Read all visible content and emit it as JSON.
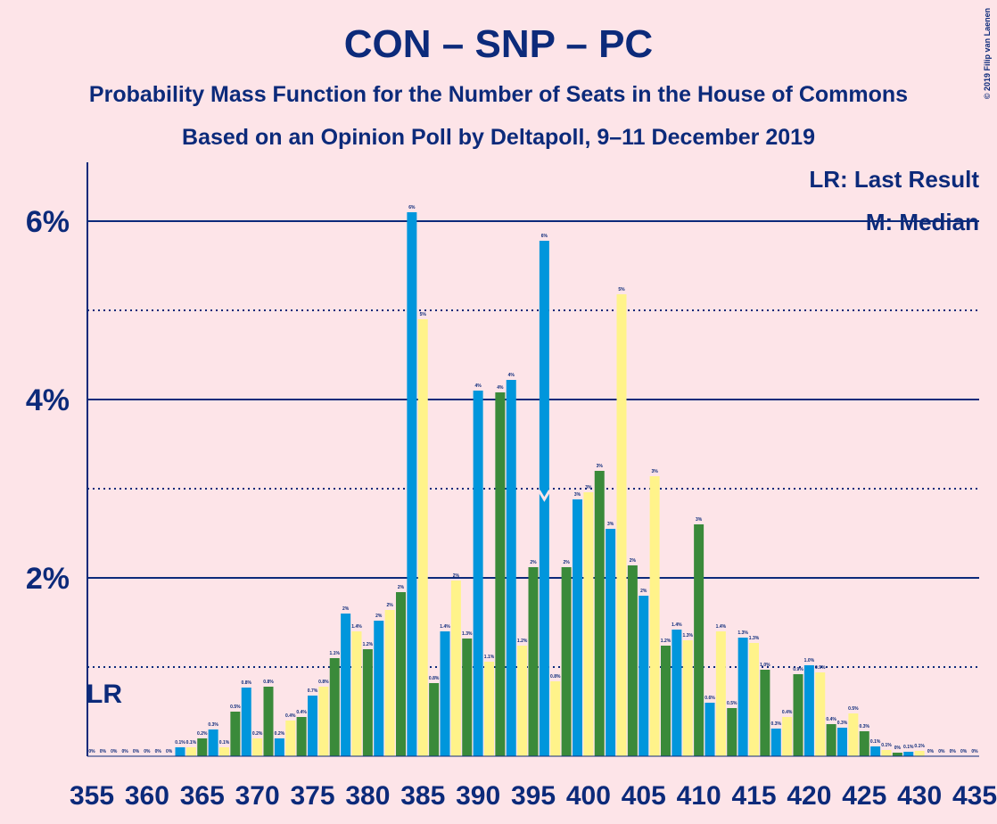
{
  "chart_data": {
    "type": "bar",
    "title": "CON – SNP – PC",
    "subtitle": "Probability Mass Function for the Number of Seats in the House of Commons",
    "subtitle2": "Based on an Opinion Poll by Deltapoll, 9–11 December 2019",
    "copyright": "© 2019 Filip van Laenen",
    "legend": [
      "LR: Last Result",
      "M: Median"
    ],
    "lr_label": "LR",
    "last_result": 355,
    "median": 396,
    "bar_colors": [
      "#fff38a",
      "#3a8a3a",
      "#0096dc"
    ],
    "x": [
      355,
      356,
      357,
      358,
      359,
      360,
      361,
      362,
      363,
      364,
      365,
      366,
      367,
      368,
      369,
      370,
      371,
      372,
      373,
      374,
      375,
      376,
      377,
      378,
      379,
      380,
      381,
      382,
      383,
      384,
      385,
      386,
      387,
      388,
      389,
      390,
      391,
      392,
      393,
      394,
      395,
      396,
      397,
      398,
      399,
      400,
      401,
      402,
      403,
      404,
      405,
      406,
      407,
      408,
      409,
      410,
      411,
      412,
      413,
      414,
      415,
      416,
      417,
      418,
      419,
      420,
      421,
      422,
      423,
      424,
      425,
      426,
      427,
      428,
      429,
      430,
      431,
      432,
      433,
      434,
      435
    ],
    "values": [
      0,
      0,
      0,
      0,
      0,
      0,
      0,
      0,
      0.1,
      0.1,
      0.2,
      0.3,
      0.1,
      0.5,
      0.77,
      0.2,
      0.78,
      0.2,
      0.4,
      0.44,
      0.68,
      0.78,
      1.1,
      1.6,
      1.4,
      1.2,
      1.52,
      1.64,
      1.84,
      6.1,
      4.9,
      0.82,
      1.4,
      1.97,
      1.32,
      4.1,
      1.06,
      4.08,
      4.22,
      1.24,
      2.12,
      5.78,
      0.84,
      2.12,
      2.88,
      2.96,
      3.2,
      2.55,
      5.18,
      2.14,
      1.8,
      3.14,
      1.24,
      1.42,
      1.3,
      2.6,
      0.6,
      1.4,
      0.54,
      1.33,
      1.27,
      0.97,
      0.31,
      0.44,
      0.92,
      1.02,
      0.94,
      0.36,
      0.32,
      0.48,
      0.28,
      0.11,
      0.07,
      0.04,
      0.05,
      0.06,
      0,
      0,
      0,
      0,
      0
    ],
    "value_labels": [
      "0%",
      "0%",
      "0%",
      "0%",
      "0%",
      "0%",
      "0%",
      "0%",
      "0.1%",
      "0.1%",
      "0.2%",
      "0.3%",
      "0.1%",
      "0.5%",
      "0.8%",
      "0.2%",
      "0.8%",
      "0.2%",
      "0.4%",
      "0.4%",
      "0.7%",
      "0.8%",
      "1.1%",
      "2%",
      "1.4%",
      "1.2%",
      "2%",
      "2%",
      "2%",
      "6%",
      "5%",
      "0.8%",
      "1.4%",
      "2%",
      "1.3%",
      "4%",
      "1.1%",
      "4%",
      "4%",
      "1.2%",
      "2%",
      "6%",
      "0.8%",
      "2%",
      "3%",
      "3%",
      "3%",
      "3%",
      "5%",
      "2%",
      "2%",
      "3%",
      "1.2%",
      "1.4%",
      "1.3%",
      "3%",
      "0.6%",
      "1.4%",
      "0.5%",
      "1.3%",
      "1.3%",
      "1.0%",
      "0.3%",
      "0.4%",
      "0.9%",
      "1.0%",
      "0.9%",
      "0.4%",
      "0.3%",
      "0.5%",
      "0.3%",
      "0.1%",
      "0.1%",
      "0%",
      "0.1%",
      "0.1%",
      "0%",
      "0%",
      "0%",
      "0%",
      "0%"
    ],
    "xticks": [
      355,
      360,
      365,
      370,
      375,
      380,
      385,
      390,
      395,
      400,
      405,
      410,
      415,
      420,
      425,
      430,
      435
    ],
    "ylim": [
      0,
      6.66
    ],
    "yticks": [
      {
        "value": 2,
        "label": "2%"
      },
      {
        "value": 4,
        "label": "4%"
      },
      {
        "value": 6,
        "label": "6%"
      }
    ],
    "yticks_minor": [
      1,
      3,
      5
    ]
  }
}
